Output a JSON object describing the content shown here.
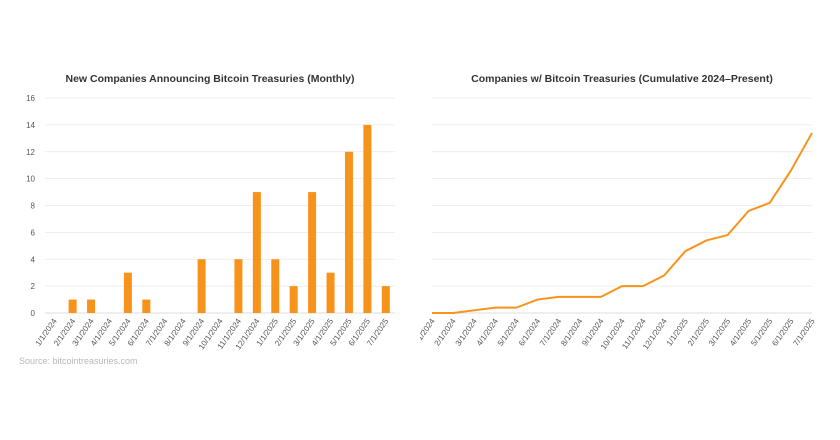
{
  "colors": {
    "accent": "#f7931a",
    "grid": "#e8e8e8",
    "axis": "#dddddd",
    "text": "#555555"
  },
  "source": "Source: bitcointreasuries.com",
  "chart_data": [
    {
      "type": "bar",
      "title": "New Companies Announcing Bitcoin Treasuries (Monthly)",
      "categories": [
        "1/1/2024",
        "2/1/2024",
        "3/1/2024",
        "4/1/2024",
        "5/1/2024",
        "6/1/2024",
        "7/1/2024",
        "8/1/2024",
        "9/1/2024",
        "10/1/2024",
        "11/1/2024",
        "12/1/2024",
        "1/1/2025",
        "2/1/2025",
        "3/1/2025",
        "4/1/2025",
        "5/1/2025",
        "6/1/2025",
        "7/1/2025"
      ],
      "x_tick_labels": [
        "1/1/2024",
        "2/1/2024",
        "3/1/2024",
        "4/1/2024",
        "5/1/2024",
        "6/1/2024",
        "7/1/2024",
        "8/1/2024",
        "9/1/2024",
        "10/1/2024",
        "11/1/2024",
        "12/1/2024",
        "1/1/2025",
        "2/1/2025",
        "3/1/2025",
        "4/1/2025",
        "5/1/2025",
        "6/1/2025",
        "7/1/2025"
      ],
      "values": [
        0,
        1,
        1,
        0,
        3,
        1,
        0,
        0,
        4,
        0,
        4,
        9,
        4,
        2,
        9,
        3,
        12,
        14,
        2
      ],
      "ylim": [
        0,
        16
      ],
      "yticks": [
        0,
        2,
        4,
        6,
        8,
        10,
        12,
        14,
        16
      ],
      "grid": true,
      "xlabel": "",
      "ylabel": ""
    },
    {
      "type": "line",
      "title": "Companies w/ Bitcoin Treasuries (Cumulative 2024–Present)",
      "x": [
        "1/1/2024",
        "2/1/2024",
        "3/1/2024",
        "4/1/2024",
        "5/1/2024",
        "6/1/2024",
        "7/1/2024",
        "8/1/2024",
        "9/1/2024",
        "10/1/2024",
        "11/1/2024",
        "12/1/2024",
        "1/1/2025",
        "2/1/2025",
        "3/1/2025",
        "4/1/2025",
        "5/1/2025",
        "6/1/2025",
        "7/1/2025"
      ],
      "values": [
        0,
        0,
        1,
        2,
        2,
        5,
        6,
        6,
        6,
        10,
        10,
        14,
        23,
        27,
        29,
        38,
        41,
        53,
        67
      ],
      "ylim": [
        0,
        80
      ],
      "yticks": [
        0,
        10,
        20,
        30,
        40,
        50,
        60,
        70,
        80
      ],
      "grid": true,
      "xlabel": "",
      "ylabel": ""
    }
  ]
}
